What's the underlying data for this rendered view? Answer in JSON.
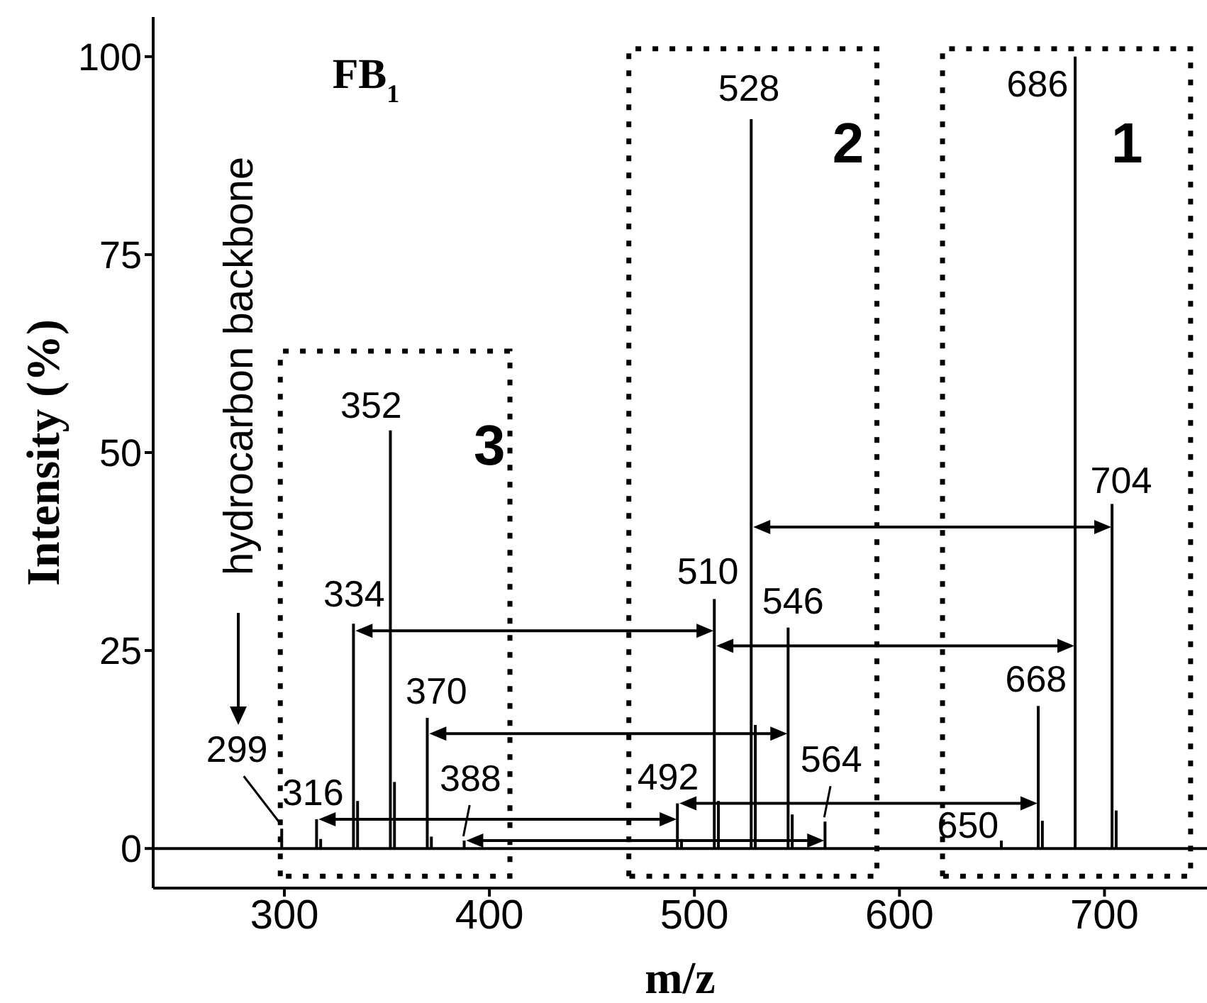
{
  "chart_data": {
    "type": "bar",
    "title": "FB$_{1}$",
    "xlabel": "m/z",
    "ylabel": "Intensity (%)",
    "x": [
      299,
      316,
      318,
      334,
      336,
      352,
      354,
      370,
      372,
      388,
      492,
      494,
      510,
      512,
      528,
      530,
      546,
      548,
      564,
      650,
      668,
      670,
      686,
      704,
      706
    ],
    "values": [
      2.5,
      3.7,
      1.2,
      28.4,
      6,
      52.8,
      8.4,
      16.5,
      1.5,
      1.0,
      5.7,
      1.2,
      31.5,
      6,
      92.1,
      15.6,
      27.9,
      4.3,
      3.4,
      1.0,
      18,
      3.5,
      100,
      43.5,
      4.8
    ],
    "color": "#000000",
    "xlim": [
      236,
      750
    ],
    "xticks": [
      300,
      400,
      500,
      600,
      700
    ],
    "ylim": [
      -5,
      105
    ],
    "yticks": [
      0,
      25,
      50,
      75,
      100
    ],
    "ref_lines": [
      {
        "axis": "y",
        "value": 0,
        "color": "#000000"
      }
    ],
    "annotations": [
      "hydrocarbon backbone",
      "1",
      "2",
      "3",
      {
        "text": "299",
        "x": 299,
        "y": 2.5
      },
      {
        "text": "316",
        "x": 316,
        "y": 3.7
      },
      {
        "text": "334",
        "x": 334,
        "y": 28.4
      },
      {
        "text": "352",
        "x": 352,
        "y": 52.8
      },
      {
        "text": "370",
        "x": 370,
        "y": 16.5
      },
      {
        "text": "388",
        "x": 388,
        "y": 1.0
      },
      {
        "text": "492",
        "x": 492,
        "y": 5.7
      },
      {
        "text": "510",
        "x": 510,
        "y": 31.5
      },
      {
        "text": "528",
        "x": 528,
        "y": 92.1
      },
      {
        "text": "546",
        "x": 546,
        "y": 27.9
      },
      {
        "text": "564",
        "x": 564,
        "y": 3.4
      },
      {
        "text": "650",
        "x": 650,
        "y": 1.0
      },
      {
        "text": "668",
        "x": 668,
        "y": 18
      },
      {
        "text": "686",
        "x": 686,
        "y": 100
      },
      {
        "text": "704",
        "x": 704,
        "y": 43.5
      }
    ]
  }
}
